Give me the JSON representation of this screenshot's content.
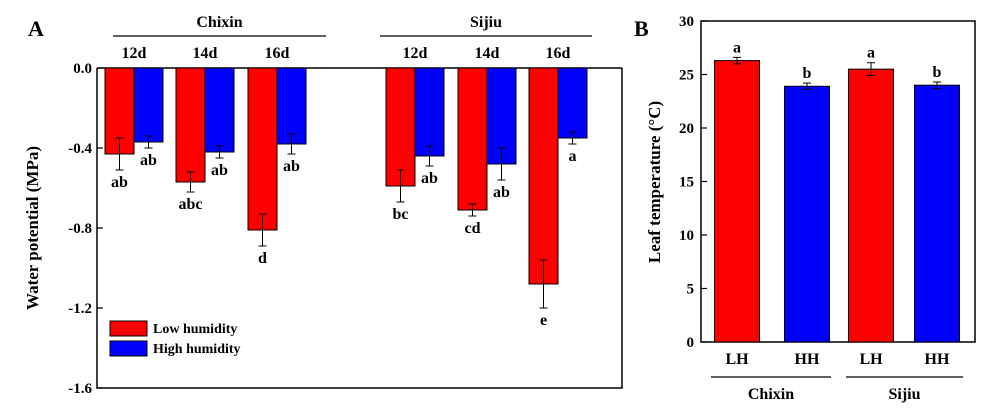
{
  "chart_data": [
    {
      "panel_label": "A",
      "type": "bar",
      "ylabel": "Water potential  (MPa)",
      "ylim": [
        -1.6,
        0.0
      ],
      "yticks": [
        "0.0",
        "-0.4",
        "-0.8",
        "-1.2",
        "-1.6"
      ],
      "ytick_values": [
        0.0,
        -0.4,
        -0.8,
        -1.2,
        -1.6
      ],
      "groups": [
        {
          "name": "Chixin",
          "categories": [
            "12d",
            "14d",
            "16d"
          ]
        },
        {
          "name": "Sijiu",
          "categories": [
            "12d",
            "14d",
            "16d"
          ]
        }
      ],
      "legend": [
        {
          "name": "Low  humidity",
          "color": "#ff0000"
        },
        {
          "name": "High humidity",
          "color": "#0000ff"
        }
      ],
      "legend_position": "bottom-left",
      "series": [
        {
          "name": "Low  humidity",
          "color": "#ff0000",
          "values": [
            -0.43,
            -0.57,
            -0.81,
            -0.59,
            -0.71,
            -1.08
          ],
          "errors": [
            0.08,
            0.05,
            0.08,
            0.08,
            0.03,
            0.12
          ],
          "labels": [
            "ab",
            "abc",
            "d",
            "bc",
            "cd",
            "e"
          ]
        },
        {
          "name": "High humidity",
          "color": "#0000ff",
          "values": [
            -0.37,
            -0.42,
            -0.38,
            -0.44,
            -0.48,
            -0.35
          ],
          "errors": [
            0.03,
            0.03,
            0.05,
            0.05,
            0.08,
            0.03
          ],
          "labels": [
            "ab",
            "ab",
            "ab",
            "ab",
            "ab",
            "a"
          ]
        }
      ]
    },
    {
      "panel_label": "B",
      "type": "bar",
      "ylabel": "Leaf temperature (°C)",
      "ylim": [
        0,
        30
      ],
      "yticks": [
        "0",
        "5",
        "10",
        "15",
        "20",
        "25",
        "30"
      ],
      "ytick_values": [
        0,
        5,
        10,
        15,
        20,
        25,
        30
      ],
      "groups": [
        {
          "name": "Chixin",
          "categories": [
            "LH",
            "HH"
          ]
        },
        {
          "name": "Sijiu",
          "categories": [
            "LH",
            "HH"
          ]
        }
      ],
      "bars": [
        {
          "group": 0,
          "category": "LH",
          "value": 26.3,
          "error": 0.3,
          "label": "a",
          "color": "#ff0000"
        },
        {
          "group": 0,
          "category": "HH",
          "value": 23.9,
          "error": 0.3,
          "label": "b",
          "color": "#0000ff"
        },
        {
          "group": 1,
          "category": "LH",
          "value": 25.5,
          "error": 0.6,
          "label": "a",
          "color": "#ff0000"
        },
        {
          "group": 1,
          "category": "HH",
          "value": 24.0,
          "error": 0.3,
          "label": "b",
          "color": "#0000ff"
        }
      ]
    }
  ]
}
